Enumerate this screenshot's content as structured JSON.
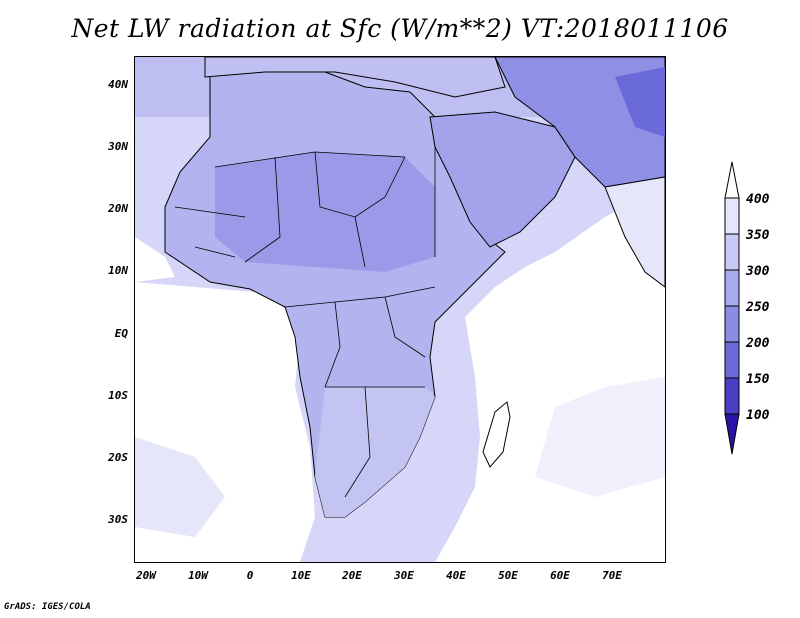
{
  "title": "Net LW radiation at Sfc (W/m**2) VT:2018011106",
  "footer": "GrADS: IGES/COLA",
  "lat_labels": [
    "40N",
    "30N",
    "20N",
    "10N",
    "EQ",
    "10S",
    "20S",
    "30S"
  ],
  "lon_labels": [
    "20W",
    "10W",
    "0",
    "10E",
    "20E",
    "30E",
    "40E",
    "50E",
    "60E",
    "70E"
  ],
  "colorbar": {
    "labels": [
      "400",
      "350",
      "300",
      "250",
      "200",
      "150",
      "100"
    ],
    "colors": [
      "#ffffff",
      "#e6e6fb",
      "#c9c9f5",
      "#aaaaee",
      "#8c8ce5",
      "#6a6ad8",
      "#4a3fc4",
      "#2a13a8"
    ]
  },
  "colors": {
    "ocean_white": "#ffffff",
    "ocean_light": "#e8e8fc",
    "land_mid": "#c7c7f3",
    "land_dark": "#9f9fea",
    "border": "#000000"
  }
}
